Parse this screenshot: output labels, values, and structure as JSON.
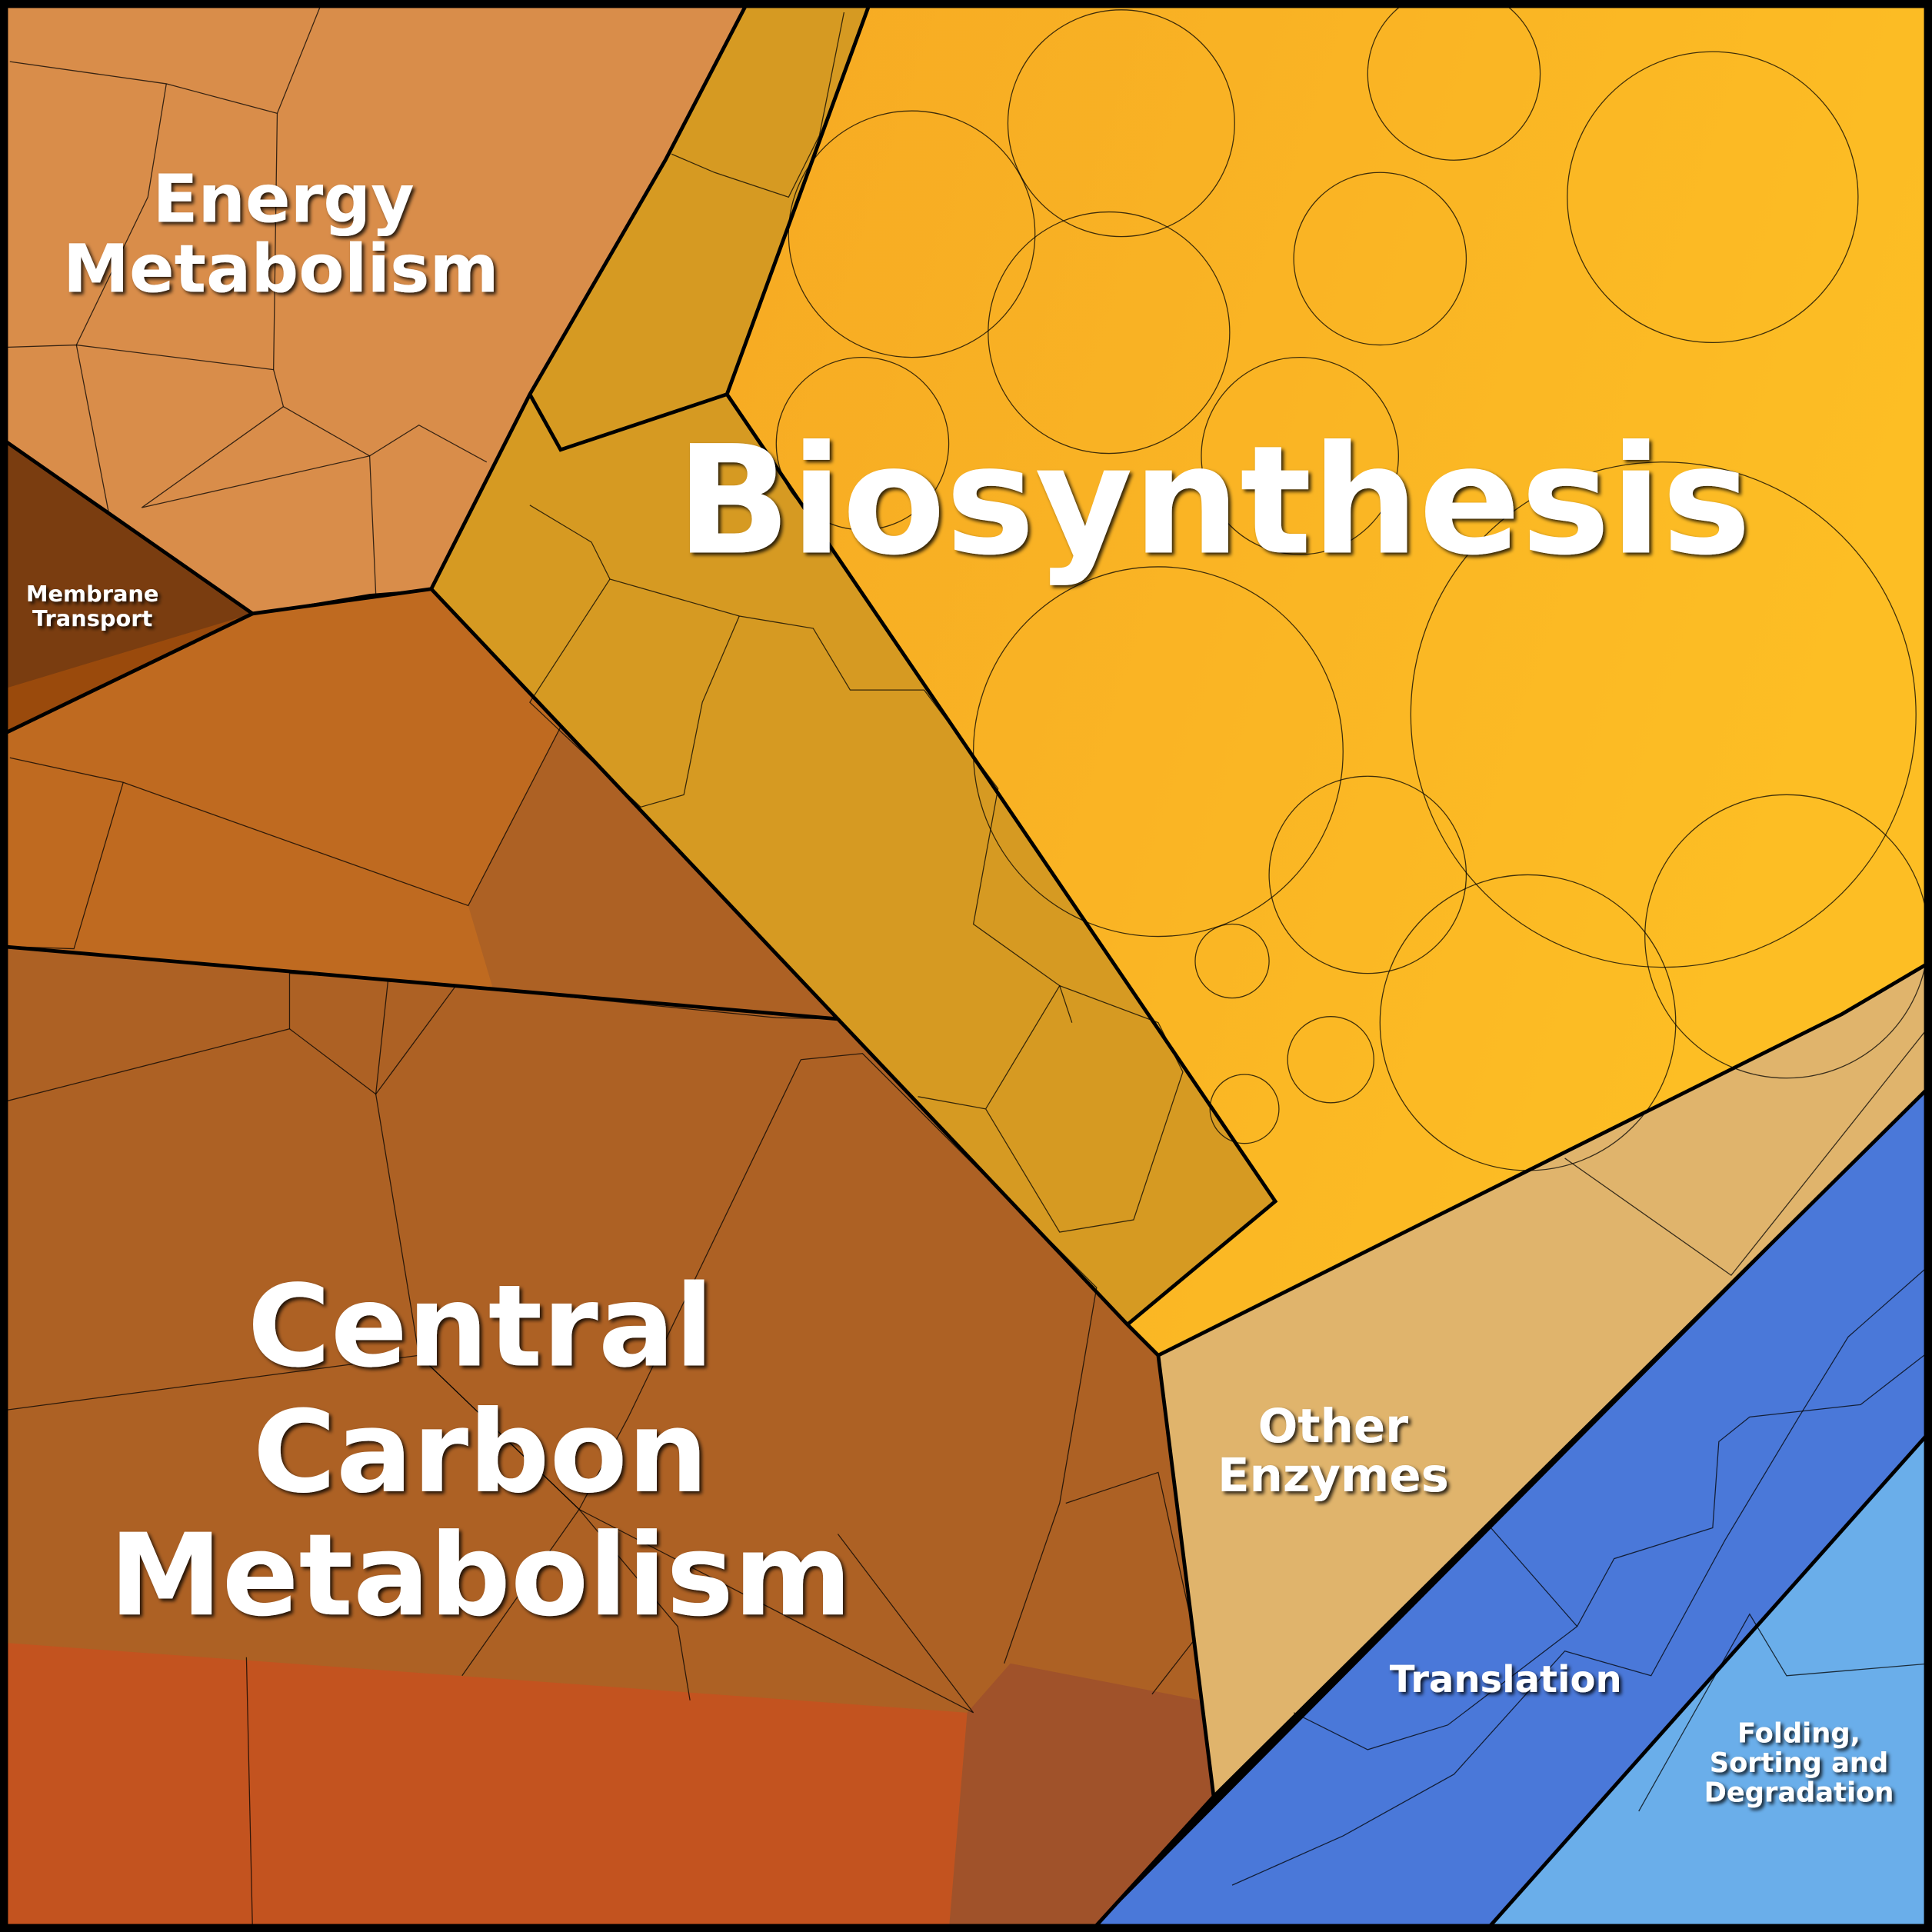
{
  "regions": [
    {
      "label_lines": [
        "Energy",
        "Metabolism"
      ]
    },
    {
      "label_lines": [
        "Membrane",
        "Transport"
      ]
    },
    {
      "label_lines": [
        "Biosynthesis"
      ]
    },
    {
      "label_lines": [
        "Central",
        "Carbon",
        "Metabolism"
      ]
    },
    {
      "label_lines": [
        "Other",
        "Enzymes"
      ]
    },
    {
      "label_lines": [
        "Translation"
      ]
    },
    {
      "label_lines": [
        "Folding,",
        "Sorting and",
        "Degradation"
      ]
    }
  ]
}
